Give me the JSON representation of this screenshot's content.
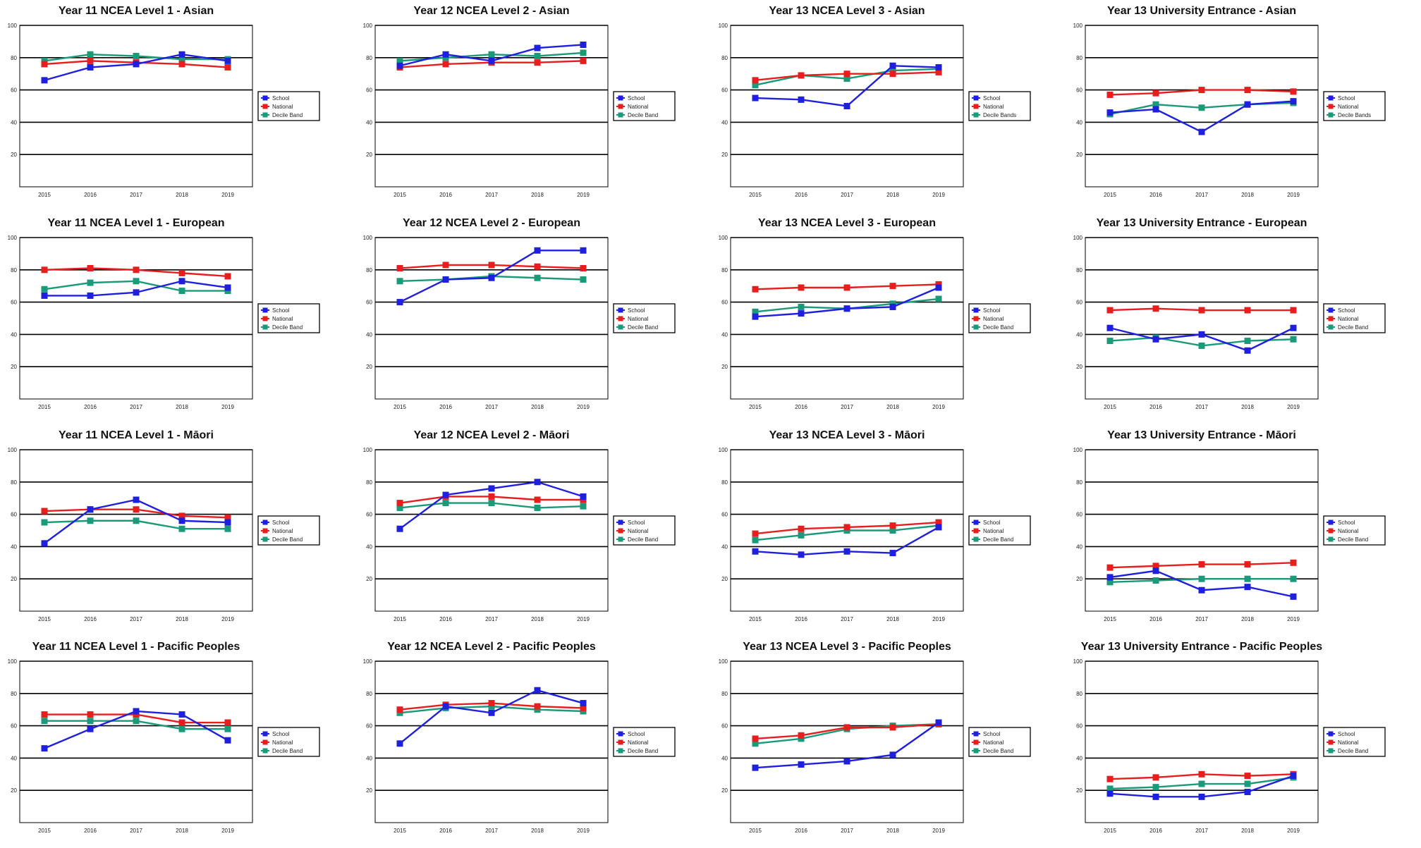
{
  "series_names": [
    "School",
    "National",
    "Decile Band"
  ],
  "colors": {
    "School": "#1f1fe0",
    "National": "#e81e1e",
    "Decile Band": "#1a9a78",
    "grid": "#000000"
  },
  "chart_data": [
    {
      "type": "line",
      "title": "Year 11 NCEA Level 1 - Asian",
      "x": [
        "2015",
        "2016",
        "2017",
        "2018",
        "2019"
      ],
      "ylim": [
        0,
        100
      ],
      "yticks": [
        20,
        40,
        60,
        80,
        100
      ],
      "grid": true,
      "legend": "right",
      "series": [
        {
          "name": "School",
          "values": [
            66,
            74,
            76,
            82,
            78
          ]
        },
        {
          "name": "National",
          "values": [
            76,
            78,
            77,
            76,
            74
          ]
        },
        {
          "name": "Decile Band",
          "values": [
            78,
            82,
            81,
            79,
            79
          ]
        }
      ]
    },
    {
      "type": "line",
      "title": "Year 12 NCEA Level 2 - Asian",
      "x": [
        "2015",
        "2016",
        "2017",
        "2018",
        "2019"
      ],
      "ylim": [
        0,
        100
      ],
      "yticks": [
        20,
        40,
        60,
        80,
        100
      ],
      "grid": true,
      "legend": "right",
      "series": [
        {
          "name": "School",
          "values": [
            75,
            82,
            78,
            86,
            88
          ]
        },
        {
          "name": "National",
          "values": [
            74,
            76,
            77,
            77,
            78
          ]
        },
        {
          "name": "Decile Band",
          "values": [
            78,
            80,
            82,
            81,
            83
          ]
        }
      ]
    },
    {
      "type": "line",
      "title": "Year 13 NCEA Level 3 - Asian",
      "x": [
        "2015",
        "2016",
        "2017",
        "2018",
        "2019"
      ],
      "ylim": [
        0,
        100
      ],
      "yticks": [
        20,
        40,
        60,
        80,
        100
      ],
      "grid": true,
      "legend": "right",
      "series": [
        {
          "name": "School",
          "values": [
            55,
            54,
            50,
            75,
            74
          ]
        },
        {
          "name": "National",
          "values": [
            66,
            69,
            70,
            70,
            71
          ]
        },
        {
          "name": "Decile Bands",
          "values": [
            63,
            69,
            67,
            72,
            73
          ]
        }
      ]
    },
    {
      "type": "line",
      "title": "Year 13 University Entrance - Asian",
      "x": [
        "2015",
        "2016",
        "2017",
        "2018",
        "2019"
      ],
      "ylim": [
        0,
        100
      ],
      "yticks": [
        20,
        40,
        60,
        80,
        100
      ],
      "grid": true,
      "legend": "right",
      "series": [
        {
          "name": "School",
          "values": [
            46,
            48,
            34,
            51,
            53
          ]
        },
        {
          "name": "National",
          "values": [
            57,
            58,
            60,
            60,
            59
          ]
        },
        {
          "name": "Decile Bands",
          "values": [
            45,
            51,
            49,
            51,
            52
          ]
        }
      ]
    },
    {
      "type": "line",
      "title": "Year 11 NCEA Level 1 - European",
      "x": [
        "2015",
        "2016",
        "2017",
        "2018",
        "2019"
      ],
      "ylim": [
        0,
        100
      ],
      "yticks": [
        20,
        40,
        60,
        80,
        100
      ],
      "grid": true,
      "legend": "right",
      "series": [
        {
          "name": "School",
          "values": [
            64,
            64,
            66,
            73,
            69
          ]
        },
        {
          "name": "National",
          "values": [
            80,
            81,
            80,
            78,
            76
          ]
        },
        {
          "name": "Decile Band",
          "values": [
            68,
            72,
            73,
            67,
            67
          ]
        }
      ]
    },
    {
      "type": "line",
      "title": "Year 12 NCEA Level 2 - European",
      "x": [
        "2015",
        "2016",
        "2017",
        "2018",
        "2019"
      ],
      "ylim": [
        0,
        100
      ],
      "yticks": [
        20,
        40,
        60,
        80,
        100
      ],
      "grid": true,
      "legend": "right",
      "series": [
        {
          "name": "School",
          "values": [
            60,
            74,
            75,
            92,
            92
          ]
        },
        {
          "name": "National",
          "values": [
            81,
            83,
            83,
            82,
            81
          ]
        },
        {
          "name": "Decile Band",
          "values": [
            73,
            74,
            76,
            75,
            74
          ]
        }
      ]
    },
    {
      "type": "line",
      "title": "Year 13 NCEA Level 3 - European",
      "x": [
        "2015",
        "2016",
        "2017",
        "2018",
        "2019"
      ],
      "ylim": [
        0,
        100
      ],
      "yticks": [
        20,
        40,
        60,
        80,
        100
      ],
      "grid": true,
      "legend": "right",
      "series": [
        {
          "name": "School",
          "values": [
            51,
            53,
            56,
            57,
            69
          ]
        },
        {
          "name": "National",
          "values": [
            68,
            69,
            69,
            70,
            71
          ]
        },
        {
          "name": "Decile Band",
          "values": [
            54,
            57,
            56,
            59,
            62
          ]
        }
      ]
    },
    {
      "type": "line",
      "title": "Year 13 University Entrance - European",
      "x": [
        "2015",
        "2016",
        "2017",
        "2018",
        "2019"
      ],
      "ylim": [
        0,
        100
      ],
      "yticks": [
        20,
        40,
        60,
        80,
        100
      ],
      "grid": true,
      "legend": "right",
      "series": [
        {
          "name": "School",
          "values": [
            44,
            37,
            40,
            30,
            44
          ]
        },
        {
          "name": "National",
          "values": [
            55,
            56,
            55,
            55,
            55
          ]
        },
        {
          "name": "Decile Band",
          "values": [
            36,
            38,
            33,
            36,
            37
          ]
        }
      ]
    },
    {
      "type": "line",
      "title": "Year 11 NCEA Level 1 - Māori",
      "x": [
        "2015",
        "2016",
        "2017",
        "2018",
        "2019"
      ],
      "ylim": [
        0,
        100
      ],
      "yticks": [
        20,
        40,
        60,
        80,
        100
      ],
      "grid": true,
      "legend": "right",
      "series": [
        {
          "name": "School",
          "values": [
            42,
            63,
            69,
            56,
            55
          ]
        },
        {
          "name": "National",
          "values": [
            62,
            63,
            63,
            59,
            58
          ]
        },
        {
          "name": "Decile Band",
          "values": [
            55,
            56,
            56,
            51,
            51
          ]
        }
      ]
    },
    {
      "type": "line",
      "title": "Year 12 NCEA Level 2 - Māori",
      "x": [
        "2015",
        "2016",
        "2017",
        "2018",
        "2019"
      ],
      "ylim": [
        0,
        100
      ],
      "yticks": [
        20,
        40,
        60,
        80,
        100
      ],
      "grid": true,
      "legend": "right",
      "series": [
        {
          "name": "School",
          "values": [
            51,
            72,
            76,
            80,
            71
          ]
        },
        {
          "name": "National",
          "values": [
            67,
            71,
            71,
            69,
            69
          ]
        },
        {
          "name": "Decile Band",
          "values": [
            64,
            67,
            67,
            64,
            65
          ]
        }
      ]
    },
    {
      "type": "line",
      "title": "Year 13 NCEA Level 3 - Māori",
      "x": [
        "2015",
        "2016",
        "2017",
        "2018",
        "2019"
      ],
      "ylim": [
        0,
        100
      ],
      "yticks": [
        20,
        40,
        60,
        80,
        100
      ],
      "grid": true,
      "legend": "right",
      "series": [
        {
          "name": "School",
          "values": [
            37,
            35,
            37,
            36,
            52
          ]
        },
        {
          "name": "National",
          "values": [
            48,
            51,
            52,
            53,
            55
          ]
        },
        {
          "name": "Decile Band",
          "values": [
            44,
            47,
            50,
            50,
            53
          ]
        }
      ]
    },
    {
      "type": "line",
      "title": "Year 13 University Entrance - Māori",
      "x": [
        "2015",
        "2016",
        "2017",
        "2018",
        "2019"
      ],
      "ylim": [
        0,
        100
      ],
      "yticks": [
        20,
        40,
        60,
        80,
        100
      ],
      "grid": true,
      "legend": "right",
      "series": [
        {
          "name": "School",
          "values": [
            21,
            25,
            13,
            15,
            9
          ]
        },
        {
          "name": "National",
          "values": [
            27,
            28,
            29,
            29,
            30
          ]
        },
        {
          "name": "Decile Band",
          "values": [
            18,
            19,
            20,
            20,
            20
          ]
        }
      ]
    },
    {
      "type": "line",
      "title": "Year 11 NCEA Level 1 - Pacific Peoples",
      "x": [
        "2015",
        "2016",
        "2017",
        "2018",
        "2019"
      ],
      "ylim": [
        0,
        100
      ],
      "yticks": [
        20,
        40,
        60,
        80,
        100
      ],
      "grid": true,
      "legend": "right",
      "series": [
        {
          "name": "School",
          "values": [
            46,
            58,
            69,
            67,
            51
          ]
        },
        {
          "name": "National",
          "values": [
            67,
            67,
            67,
            62,
            62
          ]
        },
        {
          "name": "Decile Band",
          "values": [
            63,
            63,
            63,
            58,
            58
          ]
        }
      ]
    },
    {
      "type": "line",
      "title": "Year 12 NCEA Level 2 - Pacific Peoples",
      "x": [
        "2015",
        "2016",
        "2017",
        "2018",
        "2019"
      ],
      "ylim": [
        0,
        100
      ],
      "yticks": [
        20,
        40,
        60,
        80,
        100
      ],
      "grid": true,
      "legend": "right",
      "series": [
        {
          "name": "School",
          "values": [
            49,
            72,
            68,
            82,
            74
          ]
        },
        {
          "name": "National",
          "values": [
            70,
            73,
            74,
            72,
            71
          ]
        },
        {
          "name": "Decile Band",
          "values": [
            68,
            71,
            72,
            70,
            69
          ]
        }
      ]
    },
    {
      "type": "line",
      "title": "Year 13 NCEA Level 3 - Pacific Peoples",
      "x": [
        "2015",
        "2016",
        "2017",
        "2018",
        "2019"
      ],
      "ylim": [
        0,
        100
      ],
      "yticks": [
        20,
        40,
        60,
        80,
        100
      ],
      "grid": true,
      "legend": "right",
      "series": [
        {
          "name": "School",
          "values": [
            34,
            36,
            38,
            42,
            62
          ]
        },
        {
          "name": "National",
          "values": [
            52,
            54,
            59,
            59,
            61
          ]
        },
        {
          "name": "Decile Band",
          "values": [
            49,
            52,
            58,
            60,
            61
          ]
        }
      ]
    },
    {
      "type": "line",
      "title": "Year 13 University Entrance - Pacific Peoples",
      "x": [
        "2015",
        "2016",
        "2017",
        "2018",
        "2019"
      ],
      "ylim": [
        0,
        100
      ],
      "yticks": [
        20,
        40,
        60,
        80,
        100
      ],
      "grid": true,
      "legend": "right",
      "series": [
        {
          "name": "School",
          "values": [
            18,
            16,
            16,
            19,
            29
          ]
        },
        {
          "name": "National",
          "values": [
            27,
            28,
            30,
            29,
            30
          ]
        },
        {
          "name": "Decile Band",
          "values": [
            21,
            22,
            24,
            24,
            28
          ]
        }
      ]
    }
  ]
}
